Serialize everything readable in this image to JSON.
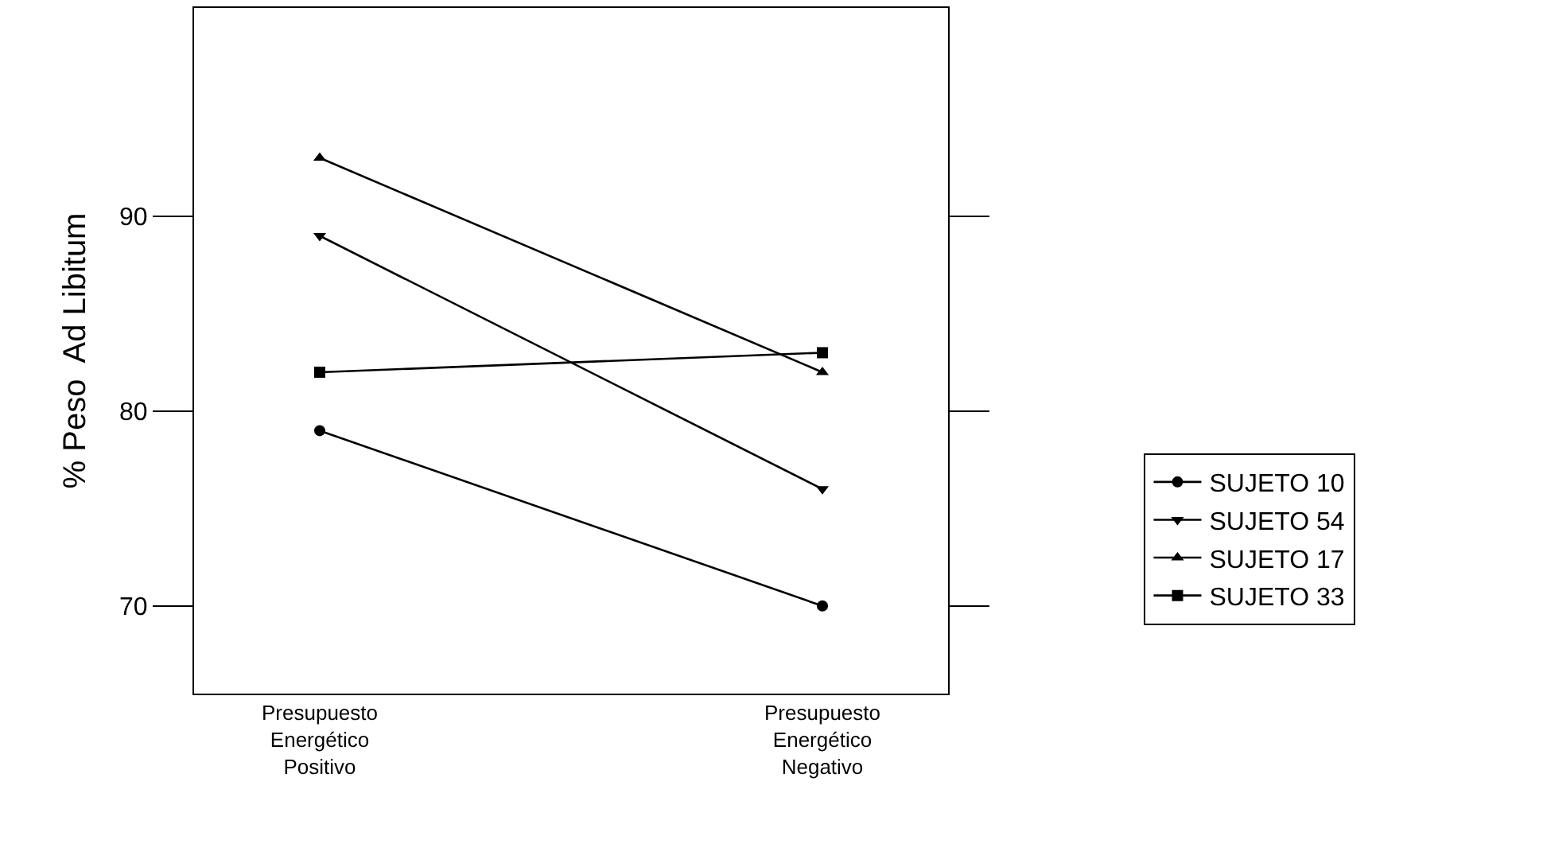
{
  "chart_data": {
    "type": "line",
    "ylabel": "% Peso  Ad Libitum",
    "categories": [
      "Presupuesto\nEnergético\nPositivo",
      "Presupuesto\nEnergético\nNegativo"
    ],
    "series": [
      {
        "name": "SUJETO 10",
        "color": "#000000",
        "marker": "circle",
        "values": [
          79,
          70
        ]
      },
      {
        "name": "SUJETO 54",
        "color": "#000000",
        "marker": "triangle-down",
        "values": [
          89,
          76
        ]
      },
      {
        "name": "SUJETO 17",
        "color": "#000000",
        "marker": "triangle",
        "values": [
          93,
          82
        ]
      },
      {
        "name": "SUJETO 33",
        "color": "#000000",
        "marker": "square",
        "values": [
          82,
          83
        ]
      }
    ],
    "ylim": [
      65.5,
      100.7
    ],
    "yticks": [
      70,
      80,
      90
    ],
    "legend": "right",
    "line_style": "solid"
  }
}
